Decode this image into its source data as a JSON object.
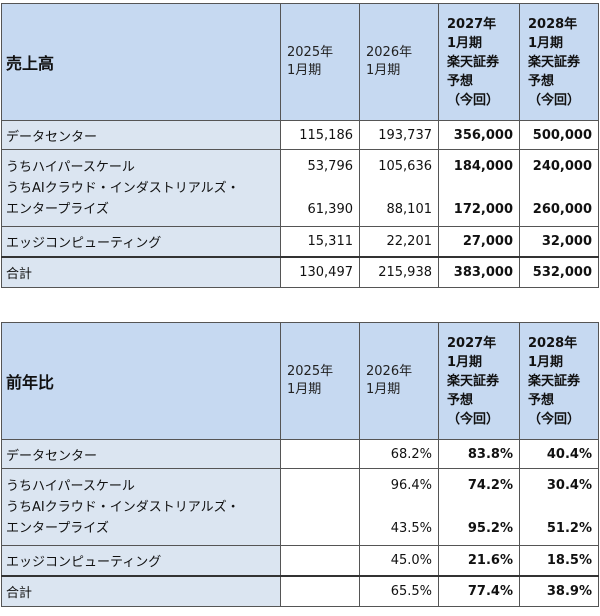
{
  "sales": {
    "title": "売上高",
    "col1": [
      "2025年",
      "1月期"
    ],
    "col2": [
      "2026年",
      "1月期"
    ],
    "col3": [
      "2027年",
      "1月期",
      "楽天証券",
      "予想",
      "（今回）"
    ],
    "col4": [
      "2028年",
      "1月期",
      "楽天証券",
      "予想",
      "（今回）"
    ],
    "rows": {
      "dc": {
        "name": "データセンター",
        "v1": "115,186",
        "v2": "193,737",
        "v3": "356,000",
        "v4": "500,000"
      },
      "hyper": {
        "name": "うちハイパースケール",
        "v1": "53,796",
        "v2": "105,636",
        "v3": "184,000",
        "v4": "240,000"
      },
      "ai": {
        "name": "うちAIクラウド・インダストリアルズ・",
        "name2": "エンタープライズ",
        "v1": "61,390",
        "v2": "88,101",
        "v3": "172,000",
        "v4": "260,000"
      },
      "edge": {
        "name": "エッジコンピューティング",
        "v1": "15,311",
        "v2": "22,201",
        "v3": "27,000",
        "v4": "32,000"
      },
      "total": {
        "name": "合計",
        "v1": "130,497",
        "v2": "215,938",
        "v3": "383,000",
        "v4": "532,000"
      }
    }
  },
  "yoy": {
    "title": "前年比",
    "col1": [
      "2025年",
      "1月期"
    ],
    "col2": [
      "2026年",
      "1月期"
    ],
    "col3": [
      "2027年",
      "1月期",
      "楽天証券",
      "予想",
      "（今回）"
    ],
    "col4": [
      "2028年",
      "1月期",
      "楽天証券",
      "予想",
      "（今回）"
    ],
    "rows": {
      "dc": {
        "name": "データセンター",
        "v1": "",
        "v2": "68.2%",
        "v3": "83.8%",
        "v4": "40.4%"
      },
      "hyper": {
        "name": "うちハイパースケール",
        "v1": "",
        "v2": "96.4%",
        "v3": "74.2%",
        "v4": "30.4%"
      },
      "ai": {
        "name": "うちAIクラウド・インダストリアルズ・",
        "name2": "エンタープライズ",
        "v1": "",
        "v2": "43.5%",
        "v3": "95.2%",
        "v4": "51.2%"
      },
      "edge": {
        "name": "エッジコンピューティング",
        "v1": "",
        "v2": "45.0%",
        "v3": "21.6%",
        "v4": "18.5%"
      },
      "total": {
        "name": "合計",
        "v1": "",
        "v2": "65.5%",
        "v3": "77.4%",
        "v4": "38.9%"
      }
    }
  }
}
